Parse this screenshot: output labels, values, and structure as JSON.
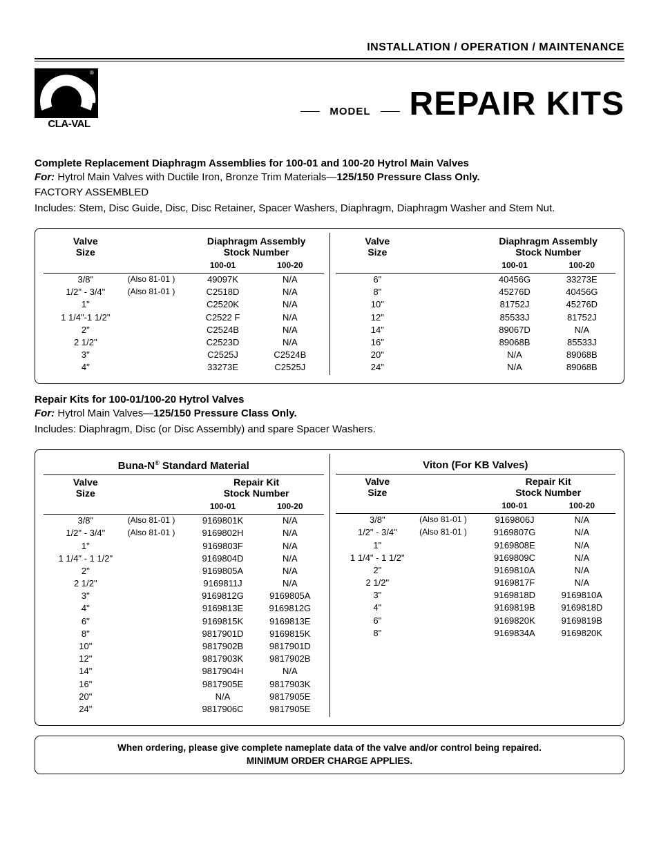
{
  "header": {
    "top_text": "INSTALLATION / OPERATION / MAINTENANCE",
    "logo_brand": "CLA-VAL",
    "model_label": "MODEL",
    "title": "REPAIR KITS"
  },
  "section1": {
    "title": "Complete Replacement Diaphragm Assemblies for 100-01 and 100-20 Hytrol Main Valves",
    "for_label": "For:",
    "for_text_a": " Hytrol Main Valves with Ductile Iron, Bronze Trim Materials—",
    "for_text_b": "125/150 Pressure Class Only.",
    "line2": "FACTORY ASSEMBLED",
    "line3": "Includes: Stem, Disc Guide, Disc, Disc Retainer, Spacer Washers, Diaphragm, Diaphragm Washer and Stem Nut."
  },
  "table1": {
    "head_valve": "Valve",
    "head_size": "Size",
    "head_assy1": "Diaphragm Assembly",
    "head_assy2": "Stock Number",
    "sub_10001": "100-01",
    "sub_10020": "100-20",
    "left": [
      {
        "size": "3/8\"",
        "note": "(Also 81-01 )",
        "v1": "49097K",
        "v2": "N/A"
      },
      {
        "size": "1/2\" - 3/4\"",
        "note": "(Also 81-01 )",
        "v1": "C2518D",
        "v2": "N/A"
      },
      {
        "size": "1\"",
        "note": "",
        "v1": "C2520K",
        "v2": "N/A"
      },
      {
        "size": "1 1/4\"-1 1/2\"",
        "note": "",
        "v1": "C2522 F",
        "v2": "N/A"
      },
      {
        "size": "2\"",
        "note": "",
        "v1": "C2524B",
        "v2": "N/A"
      },
      {
        "size": "2 1/2\"",
        "note": "",
        "v1": "C2523D",
        "v2": "N/A"
      },
      {
        "size": "3\"",
        "note": "",
        "v1": "C2525J",
        "v2": "C2524B"
      },
      {
        "size": "4\"",
        "note": "",
        "v1": "33273E",
        "v2": "C2525J"
      }
    ],
    "right": [
      {
        "size": "6\"",
        "note": "",
        "v1": "40456G",
        "v2": "33273E"
      },
      {
        "size": "8\"",
        "note": "",
        "v1": "45276D",
        "v2": "40456G"
      },
      {
        "size": "10\"",
        "note": "",
        "v1": "81752J",
        "v2": "45276D"
      },
      {
        "size": "12\"",
        "note": "",
        "v1": "85533J",
        "v2": "81752J"
      },
      {
        "size": "14\"",
        "note": "",
        "v1": "89067D",
        "v2": "N/A"
      },
      {
        "size": "16\"",
        "note": "",
        "v1": "89068B",
        "v2": "85533J"
      },
      {
        "size": "20\"",
        "note": "",
        "v1": "N/A",
        "v2": "89068B"
      },
      {
        "size": "24\"",
        "note": "",
        "v1": "N/A",
        "v2": "89068B"
      }
    ]
  },
  "section2": {
    "title": "Repair Kits for 100-01/100-20 Hytrol Valves",
    "for_label": "For:",
    "for_text_a": " Hytrol Main Valves—",
    "for_text_b": "125/150 Pressure Class Only.",
    "line2": "Includes: Diaphragm, Disc (or Disc Assembly) and spare Spacer Washers."
  },
  "table2": {
    "mat_left_a": "Buna-N",
    "mat_left_b": " Standard Material",
    "mat_right": "Viton (For KB Valves)",
    "head_valve": "Valve",
    "head_size": "Size",
    "head_kit1": "Repair Kit",
    "head_kit2": "Stock Number",
    "sub_10001": "100-01",
    "sub_10020": "100-20",
    "left": [
      {
        "size": "3/8\"",
        "note": "(Also 81-01 )",
        "v1": "9169801K",
        "v2": "N/A"
      },
      {
        "size": "1/2\" - 3/4\"",
        "note": "(Also 81-01 )",
        "v1": "9169802H",
        "v2": "N/A"
      },
      {
        "size": "1\"",
        "note": "",
        "v1": "9169803F",
        "v2": "N/A"
      },
      {
        "size": "1 1/4\" - 1 1/2\"",
        "note": "",
        "v1": "9169804D",
        "v2": "N/A"
      },
      {
        "size": "2\"",
        "note": "",
        "v1": "9169805A",
        "v2": "N/A"
      },
      {
        "size": "2 1/2\"",
        "note": "",
        "v1": "9169811J",
        "v2": "N/A"
      },
      {
        "size": "3\"",
        "note": "",
        "v1": "9169812G",
        "v2": "9169805A"
      },
      {
        "size": "4\"",
        "note": "",
        "v1": "9169813E",
        "v2": "9169812G"
      },
      {
        "size": "6\"",
        "note": "",
        "v1": "9169815K",
        "v2": "9169813E"
      },
      {
        "size": "8\"",
        "note": "",
        "v1": "9817901D",
        "v2": "9169815K"
      },
      {
        "size": "10\"",
        "note": "",
        "v1": "9817902B",
        "v2": "9817901D"
      },
      {
        "size": "12\"",
        "note": "",
        "v1": "9817903K",
        "v2": "9817902B"
      },
      {
        "size": "14\"",
        "note": "",
        "v1": "9817904H",
        "v2": "N/A"
      },
      {
        "size": "16\"",
        "note": "",
        "v1": "9817905E",
        "v2": "9817903K"
      },
      {
        "size": "20\"",
        "note": "",
        "v1": "N/A",
        "v2": "9817905E"
      },
      {
        "size": "24\"",
        "note": "",
        "v1": "9817906C",
        "v2": "9817905E"
      }
    ],
    "right": [
      {
        "size": "3/8\"",
        "note": "(Also 81-01 )",
        "v1": "9169806J",
        "v2": "N/A"
      },
      {
        "size": "1/2\" - 3/4\"",
        "note": "(Also 81-01 )",
        "v1": "9169807G",
        "v2": "N/A"
      },
      {
        "size": "1\"",
        "note": "",
        "v1": "9169808E",
        "v2": "N/A"
      },
      {
        "size": "1 1/4\" - 1 1/2\"",
        "note": "",
        "v1": "9169809C",
        "v2": "N/A"
      },
      {
        "size": "2\"",
        "note": "",
        "v1": "9169810A",
        "v2": "N/A"
      },
      {
        "size": "2 1/2\"",
        "note": "",
        "v1": "9169817F",
        "v2": "N/A"
      },
      {
        "size": "3\"",
        "note": "",
        "v1": "9169818D",
        "v2": "9169810A"
      },
      {
        "size": "4\"",
        "note": "",
        "v1": "9169819B",
        "v2": "9169818D"
      },
      {
        "size": "6\"",
        "note": "",
        "v1": "9169820K",
        "v2": "9169819B"
      },
      {
        "size": "8\"",
        "note": "",
        "v1": "9169834A",
        "v2": "9169820K"
      }
    ]
  },
  "footer": {
    "line1": "When ordering, please give complete nameplate data of the valve and/or control being repaired.",
    "line2": "MINIMUM ORDER CHARGE APPLIES."
  },
  "colors": {
    "text": "#000000",
    "bg": "#ffffff",
    "border": "#000000"
  }
}
